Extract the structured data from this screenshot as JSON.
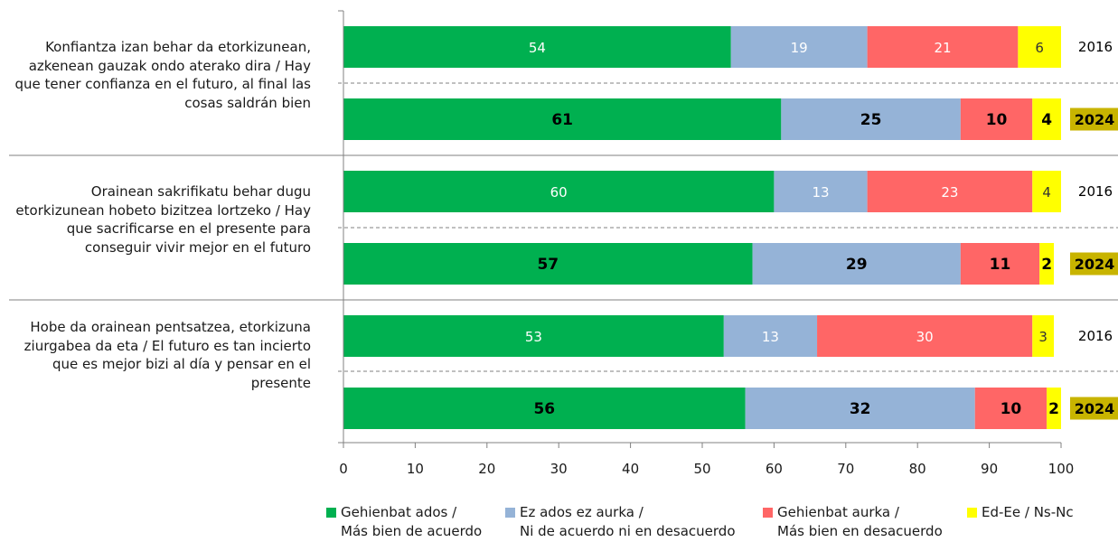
{
  "chart_data": {
    "type": "bar",
    "stacked": true,
    "orientation": "horizontal",
    "xlim": [
      0,
      100
    ],
    "x_ticks": [
      0,
      10,
      20,
      30,
      40,
      50,
      60,
      70,
      80,
      90,
      100
    ],
    "series": [
      {
        "name": "Gehienbat ados /\nMás bien de acuerdo",
        "color": "#00b050"
      },
      {
        "name": "Ez ados ez aurka /\nNi de acuerdo ni en desacuerdo",
        "color": "#95b3d7"
      },
      {
        "name": "Gehienbat aurka /\nMás bien en desacuerdo",
        "color": "#ff6666"
      },
      {
        "name": "Ed-Ee / Ns-Nc",
        "color": "#ffff00"
      }
    ],
    "groups": [
      {
        "label": "Konfiantza izan behar da etorkizunean,\nazkenean gauzak ondo aterako dira /\nHay que tener confianza en el futuro,\nal final las cosas saldrán bien",
        "bars": [
          {
            "year": "2016",
            "values": [
              54,
              19,
              21,
              6
            ],
            "highlight": false
          },
          {
            "year": "2024",
            "values": [
              61,
              25,
              10,
              4
            ],
            "highlight": true
          }
        ]
      },
      {
        "label": "Orainean sakrifikatu behar dugu\netorkizunean hobeto bizitzea lortzeko /\nHay que sacrificarse en el presente para\nconseguir vivir mejor en el futuro",
        "bars": [
          {
            "year": "2016",
            "values": [
              60,
              13,
              23,
              4
            ],
            "highlight": false
          },
          {
            "year": "2024",
            "values": [
              57,
              29,
              11,
              2
            ],
            "highlight": true
          }
        ]
      },
      {
        "label": "Hobe da orainean pentsatzea,\netorkizuna ziurgabea da eta /\nEl futuro es tan incierto que es mejor\nbizi al día y pensar en el presente",
        "bars": [
          {
            "year": "2016",
            "values": [
              53,
              13,
              30,
              3
            ],
            "highlight": false
          },
          {
            "year": "2024",
            "values": [
              56,
              32,
              10,
              2
            ],
            "highlight": true
          }
        ]
      }
    ],
    "legend_position": "bottom",
    "grid": false,
    "year_highlight_color": "#c8b400"
  }
}
